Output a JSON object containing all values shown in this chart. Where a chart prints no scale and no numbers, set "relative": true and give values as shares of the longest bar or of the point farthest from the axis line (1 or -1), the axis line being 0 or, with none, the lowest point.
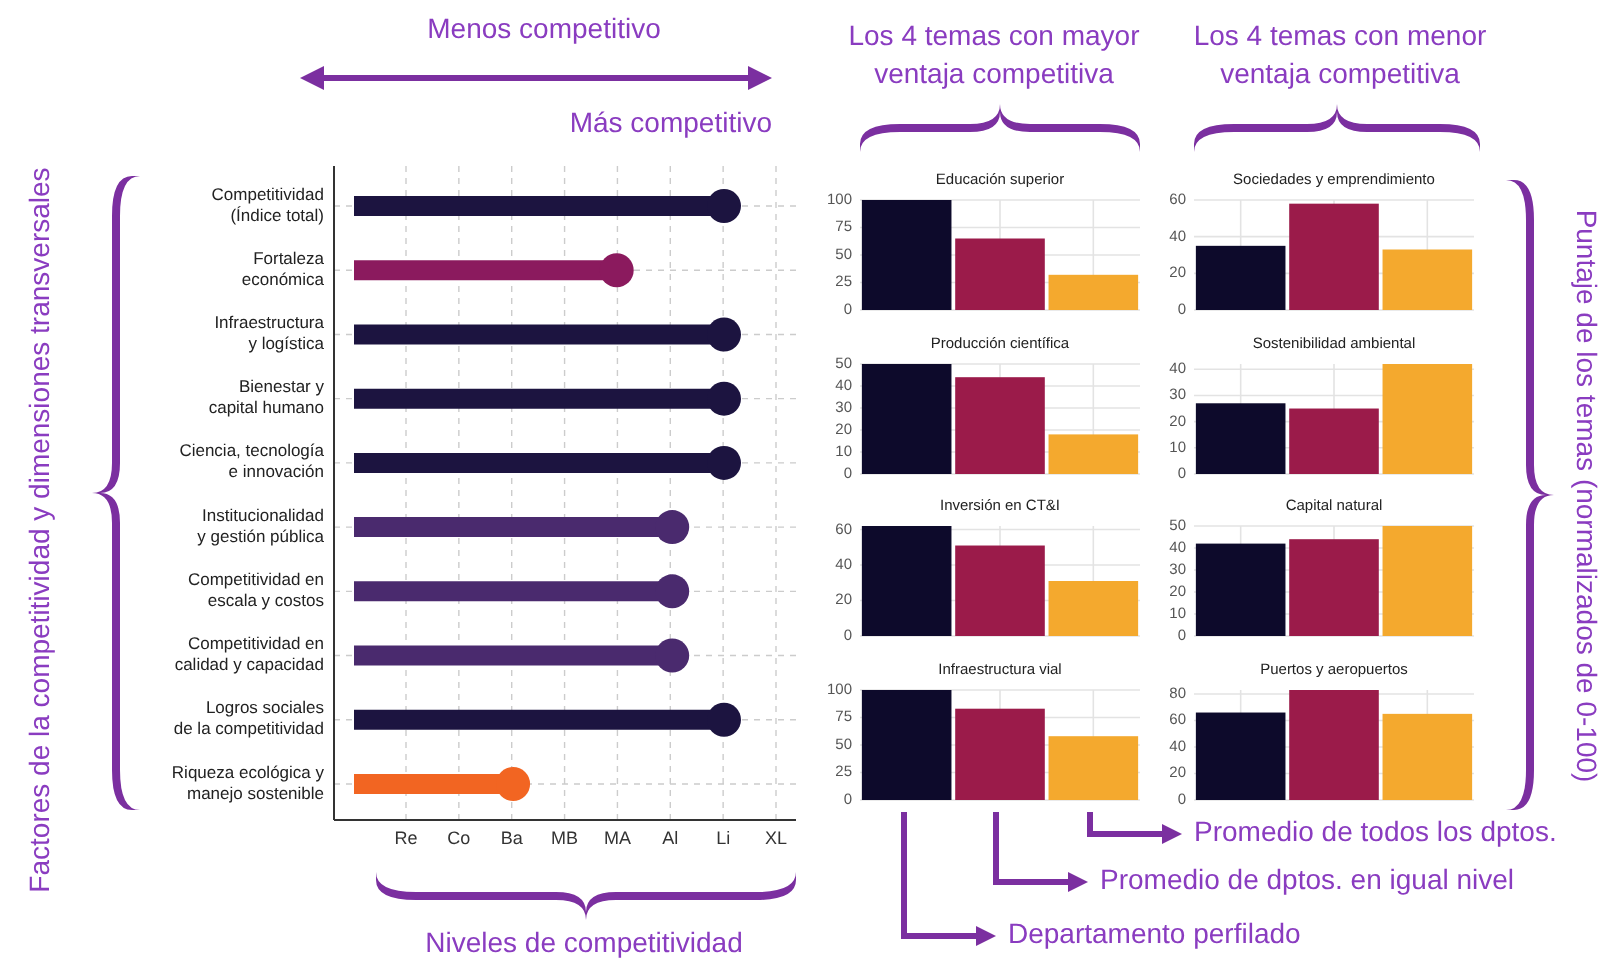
{
  "chart_data": [
    {
      "type": "lollipop",
      "orientation": "horizontal",
      "xlabel": "Niveles de competitividad",
      "ylabel": "Factores de la competitividad y dimensiones transversales",
      "annotations": [
        "Menos competitivo",
        "Más competitivo",
        "Re",
        "Co",
        "Ba",
        "MB",
        "MA",
        "Al",
        "Li",
        "XL"
      ],
      "relative": true,
      "categories": [
        "Competitividad\n(Índice total)",
        "Fortaleza\neconómica",
        "Infraestructura\ny logística",
        "Bienestar y\ncapital humano",
        "Ciencia, tecnología\ne innovación",
        "Institucionalidad\ny gestión pública",
        "Competitividad en\nescala y costos",
        "Competitividad en\ncalidad y capacidad",
        "Logros sociales\nde la competitividad",
        "Riqueza ecológica y\nmanejo sostenible"
      ],
      "values": [
        1,
        0.71,
        1,
        1,
        1,
        0.86,
        0.86,
        0.86,
        1,
        0.43
      ],
      "colors": [
        "#1c1440",
        "#8b1a5e",
        "#1c1440",
        "#1c1440",
        "#1c1440",
        "#4a2a6e",
        "#4a2a6e",
        "#4a2a6e",
        "#1c1440",
        "#f26522"
      ],
      "grid": true
    },
    {
      "type": "bar",
      "title": "Educación superior",
      "categories": [
        null,
        null,
        null
      ],
      "values": [
        100,
        65,
        32
      ],
      "colors": [
        "#0d0a2b",
        "#9b1b4a",
        "#f4a92e"
      ],
      "ylim": [
        0,
        100
      ],
      "yticks": [
        0,
        25,
        50,
        75,
        100
      ],
      "grid": true
    },
    {
      "type": "bar",
      "title": "Producción científica",
      "categories": [
        null,
        null,
        null
      ],
      "values": [
        50,
        44,
        18
      ],
      "colors": [
        "#0d0a2b",
        "#9b1b4a",
        "#f4a92e"
      ],
      "ylim": [
        0,
        50
      ],
      "yticks": [
        0,
        10,
        20,
        30,
        40,
        50
      ],
      "grid": true
    },
    {
      "type": "bar",
      "title": "Inversión en CT&I",
      "categories": [
        null,
        null,
        null
      ],
      "values": [
        62,
        51,
        31
      ],
      "colors": [
        "#0d0a2b",
        "#9b1b4a",
        "#f4a92e"
      ],
      "ylim": [
        0,
        62
      ],
      "yticks": [
        0,
        20,
        40,
        60
      ],
      "grid": true
    },
    {
      "type": "bar",
      "title": "Infraestructura vial",
      "categories": [
        null,
        null,
        null
      ],
      "values": [
        100,
        83,
        58
      ],
      "colors": [
        "#0d0a2b",
        "#9b1b4a",
        "#f4a92e"
      ],
      "ylim": [
        0,
        100
      ],
      "yticks": [
        0,
        25,
        50,
        75,
        100
      ],
      "grid": true
    },
    {
      "type": "bar",
      "title": "Sociedades y emprendimiento",
      "categories": [
        null,
        null,
        null
      ],
      "values": [
        35,
        58,
        33
      ],
      "colors": [
        "#0d0a2b",
        "#9b1b4a",
        "#f4a92e"
      ],
      "ylim": [
        0,
        60
      ],
      "yticks": [
        0,
        20,
        40,
        60
      ],
      "grid": true
    },
    {
      "type": "bar",
      "title": "Sostenibilidad ambiental",
      "categories": [
        null,
        null,
        null
      ],
      "values": [
        27,
        25,
        42
      ],
      "colors": [
        "#0d0a2b",
        "#9b1b4a",
        "#f4a92e"
      ],
      "ylim": [
        0,
        42
      ],
      "yticks": [
        0,
        10,
        20,
        30,
        40
      ],
      "grid": true
    },
    {
      "type": "bar",
      "title": "Capital natural",
      "categories": [
        null,
        null,
        null
      ],
      "values": [
        42,
        44,
        50
      ],
      "colors": [
        "#0d0a2b",
        "#9b1b4a",
        "#f4a92e"
      ],
      "ylim": [
        0,
        50
      ],
      "yticks": [
        0,
        10,
        20,
        30,
        40,
        50
      ],
      "grid": true
    },
    {
      "type": "bar",
      "title": "Puertos y aeropuertos",
      "categories": [
        null,
        null,
        null
      ],
      "values": [
        66,
        83,
        65
      ],
      "colors": [
        "#0d0a2b",
        "#9b1b4a",
        "#f4a92e"
      ],
      "ylim": [
        0,
        83
      ],
      "yticks": [
        0,
        20,
        40,
        60,
        80
      ],
      "grid": true
    },
    {
      "type": "other",
      "annotations": [
        "Los 4 temas con mayor\nventaja competitiva",
        "Los 4 temas con menor\nventaja competitiva",
        "Puntaje de los temas (normalizados de 0-100)",
        "Departamento perfilado",
        "Promedio de dptos. en igual nivel",
        "Promedio de todos los dptos."
      ]
    }
  ]
}
